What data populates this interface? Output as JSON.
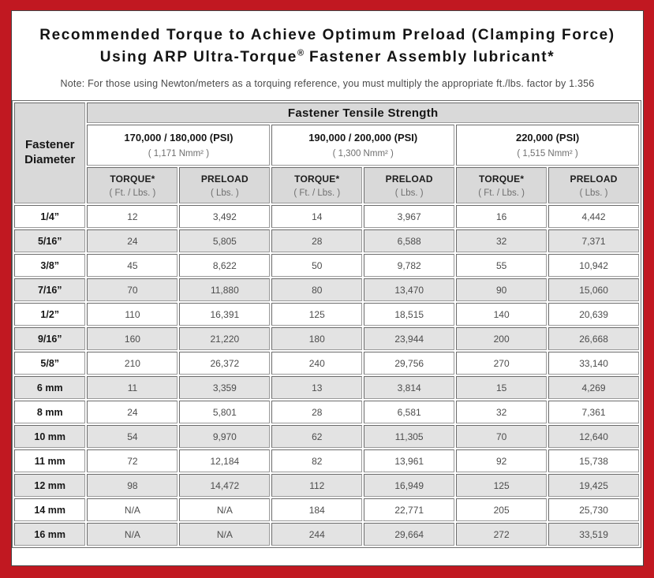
{
  "page": {
    "title_line1": "Recommended Torque to Achieve Optimum Preload (Clamping Force)",
    "title_line2_prefix": "Using ARP Ultra-Torque",
    "title_line2_sup": "®",
    "title_line2_suffix": " Fastener Assembly lubricant*",
    "note": "Note: For those using Newton/meters as a torquing reference, you must multiply the appropriate ft./lbs. factor by 1.356"
  },
  "colors": {
    "border_red": "#c11821",
    "header_gray": "#d9d9d9",
    "alt_row_gray": "#e3e3e3"
  },
  "table": {
    "tensile_strength_header": "Fastener Tensile Strength",
    "corner_header_line1": "Fastener",
    "corner_header_line2": "Diameter",
    "strength_groups": [
      {
        "psi": "170,000 / 180,000 (PSI)",
        "nmm": "( 1,171 Nmm² )"
      },
      {
        "psi": "190,000 / 200,000 (PSI)",
        "nmm": "( 1,300 Nmm² )"
      },
      {
        "psi": "220,000 (PSI)",
        "nmm": "( 1,515 Nmm² )"
      }
    ],
    "column_headers": {
      "torque_label": "TORQUE*",
      "torque_unit": "( Ft. / Lbs. )",
      "preload_label": "PRELOAD",
      "preload_unit": "( Lbs. )"
    },
    "rows": [
      {
        "diameter": "1/4”",
        "values": [
          "12",
          "3,492",
          "14",
          "3,967",
          "16",
          "4,442"
        ]
      },
      {
        "diameter": "5/16”",
        "values": [
          "24",
          "5,805",
          "28",
          "6,588",
          "32",
          "7,371"
        ]
      },
      {
        "diameter": "3/8”",
        "values": [
          "45",
          "8,622",
          "50",
          "9,782",
          "55",
          "10,942"
        ]
      },
      {
        "diameter": "7/16”",
        "values": [
          "70",
          "11,880",
          "80",
          "13,470",
          "90",
          "15,060"
        ]
      },
      {
        "diameter": "1/2”",
        "values": [
          "110",
          "16,391",
          "125",
          "18,515",
          "140",
          "20,639"
        ]
      },
      {
        "diameter": "9/16”",
        "values": [
          "160",
          "21,220",
          "180",
          "23,944",
          "200",
          "26,668"
        ]
      },
      {
        "diameter": "5/8”",
        "values": [
          "210",
          "26,372",
          "240",
          "29,756",
          "270",
          "33,140"
        ]
      },
      {
        "diameter": "6 mm",
        "values": [
          "11",
          "3,359",
          "13",
          "3,814",
          "15",
          "4,269"
        ]
      },
      {
        "diameter": "8 mm",
        "values": [
          "24",
          "5,801",
          "28",
          "6,581",
          "32",
          "7,361"
        ]
      },
      {
        "diameter": "10 mm",
        "values": [
          "54",
          "9,970",
          "62",
          "11,305",
          "70",
          "12,640"
        ]
      },
      {
        "diameter": "11 mm",
        "values": [
          "72",
          "12,184",
          "82",
          "13,961",
          "92",
          "15,738"
        ]
      },
      {
        "diameter": "12 mm",
        "values": [
          "98",
          "14,472",
          "112",
          "16,949",
          "125",
          "19,425"
        ]
      },
      {
        "diameter": "14 mm",
        "values": [
          "N/A",
          "N/A",
          "184",
          "22,771",
          "205",
          "25,730"
        ]
      },
      {
        "diameter": "16 mm",
        "values": [
          "N/A",
          "N/A",
          "244",
          "29,664",
          "272",
          "33,519"
        ]
      }
    ]
  }
}
